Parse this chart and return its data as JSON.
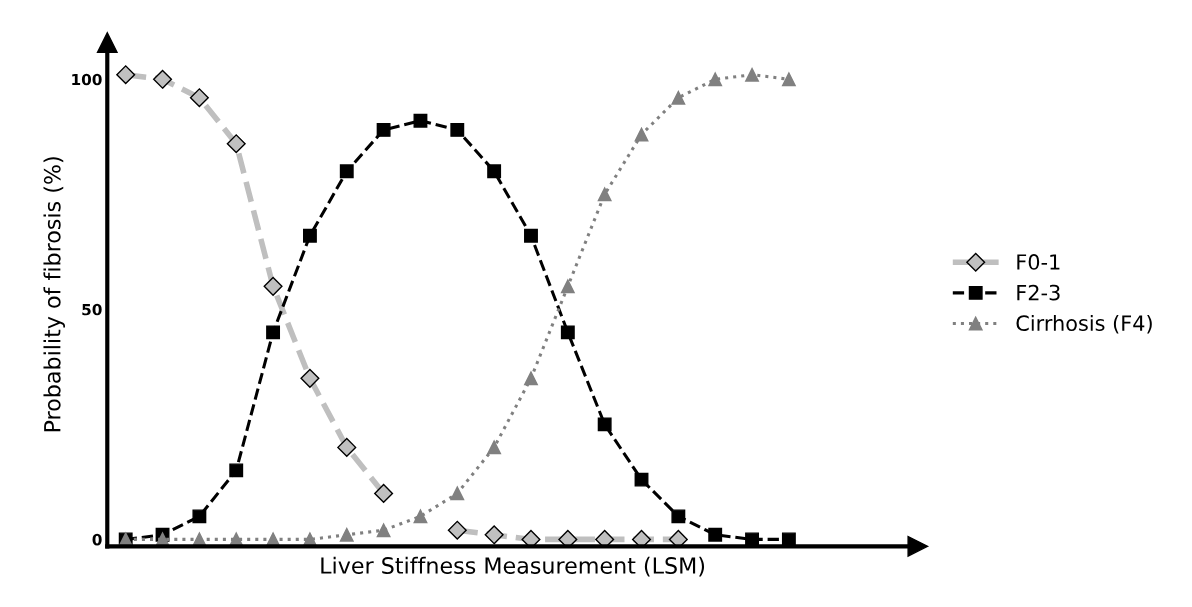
{
  "chart_data": {
    "type": "line",
    "xlabel": "Liver Stiffness Measurement (LSM)",
    "ylabel": "Probability of fibrosis (%)",
    "categories": [
      null,
      null,
      null,
      null,
      null,
      null,
      null,
      null,
      null,
      null,
      null,
      null,
      null,
      null,
      null,
      null,
      null,
      null,
      null
    ],
    "series": [
      {
        "name": "F0-1",
        "color": "#bfbfbf",
        "marker": "diamond",
        "line_style": "dashed",
        "values": [
          101,
          100,
          96,
          86,
          55,
          35,
          20,
          10,
          null,
          2,
          1,
          0,
          0,
          0,
          0,
          0,
          null,
          null,
          null
        ]
      },
      {
        "name": "F2-3",
        "color": "#000000",
        "marker": "square",
        "line_style": "dashed",
        "values": [
          0,
          1,
          5,
          15,
          45,
          66,
          80,
          89,
          91,
          89,
          80,
          66,
          45,
          25,
          13,
          5,
          1,
          0,
          0
        ]
      },
      {
        "name": "Cirrhosis (F4)",
        "color": "#808080",
        "marker": "triangle",
        "line_style": "dotted",
        "values": [
          0,
          0,
          0,
          0,
          0,
          0,
          1,
          2,
          5,
          10,
          20,
          35,
          55,
          75,
          88,
          96,
          100,
          101,
          100
        ]
      }
    ],
    "ylim": [
      -1.5,
      108
    ],
    "yticks": [
      0,
      50,
      100
    ],
    "grid": false,
    "legend": "right"
  }
}
